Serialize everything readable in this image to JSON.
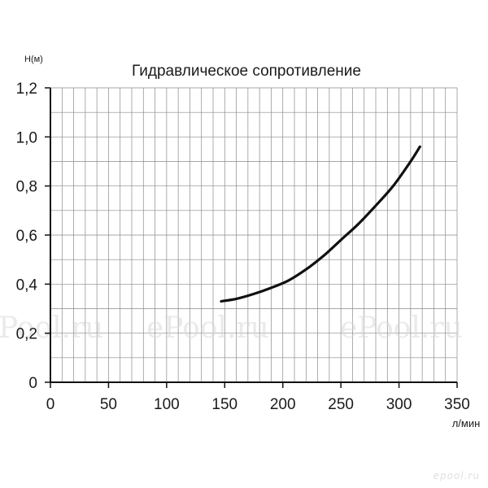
{
  "chart_data": {
    "type": "line",
    "title": "Гидравлическое сопротивление",
    "ylabel": "Н(м)",
    "xlabel": "л/мин",
    "xlim": [
      0,
      350
    ],
    "ylim": [
      0,
      1.2
    ],
    "x_ticks": [
      "0",
      "50",
      "100",
      "150",
      "200",
      "250",
      "300",
      "350"
    ],
    "y_ticks": [
      "0",
      "0,2",
      "0,4",
      "0,6",
      "0,8",
      "1,0",
      "1,2"
    ],
    "grid": true,
    "series": [
      {
        "color": "#111111",
        "x": [
          147,
          160,
          175,
          190,
          205,
          220,
          235,
          250,
          265,
          280,
          295,
          310,
          318
        ],
        "y": [
          0.33,
          0.34,
          0.36,
          0.385,
          0.415,
          0.46,
          0.515,
          0.58,
          0.645,
          0.72,
          0.8,
          0.9,
          0.96
        ]
      }
    ]
  },
  "watermarks": [
    "Pool.ru",
    "ePool.ru",
    "ePool.ru"
  ],
  "logo_text": "epool.ru"
}
